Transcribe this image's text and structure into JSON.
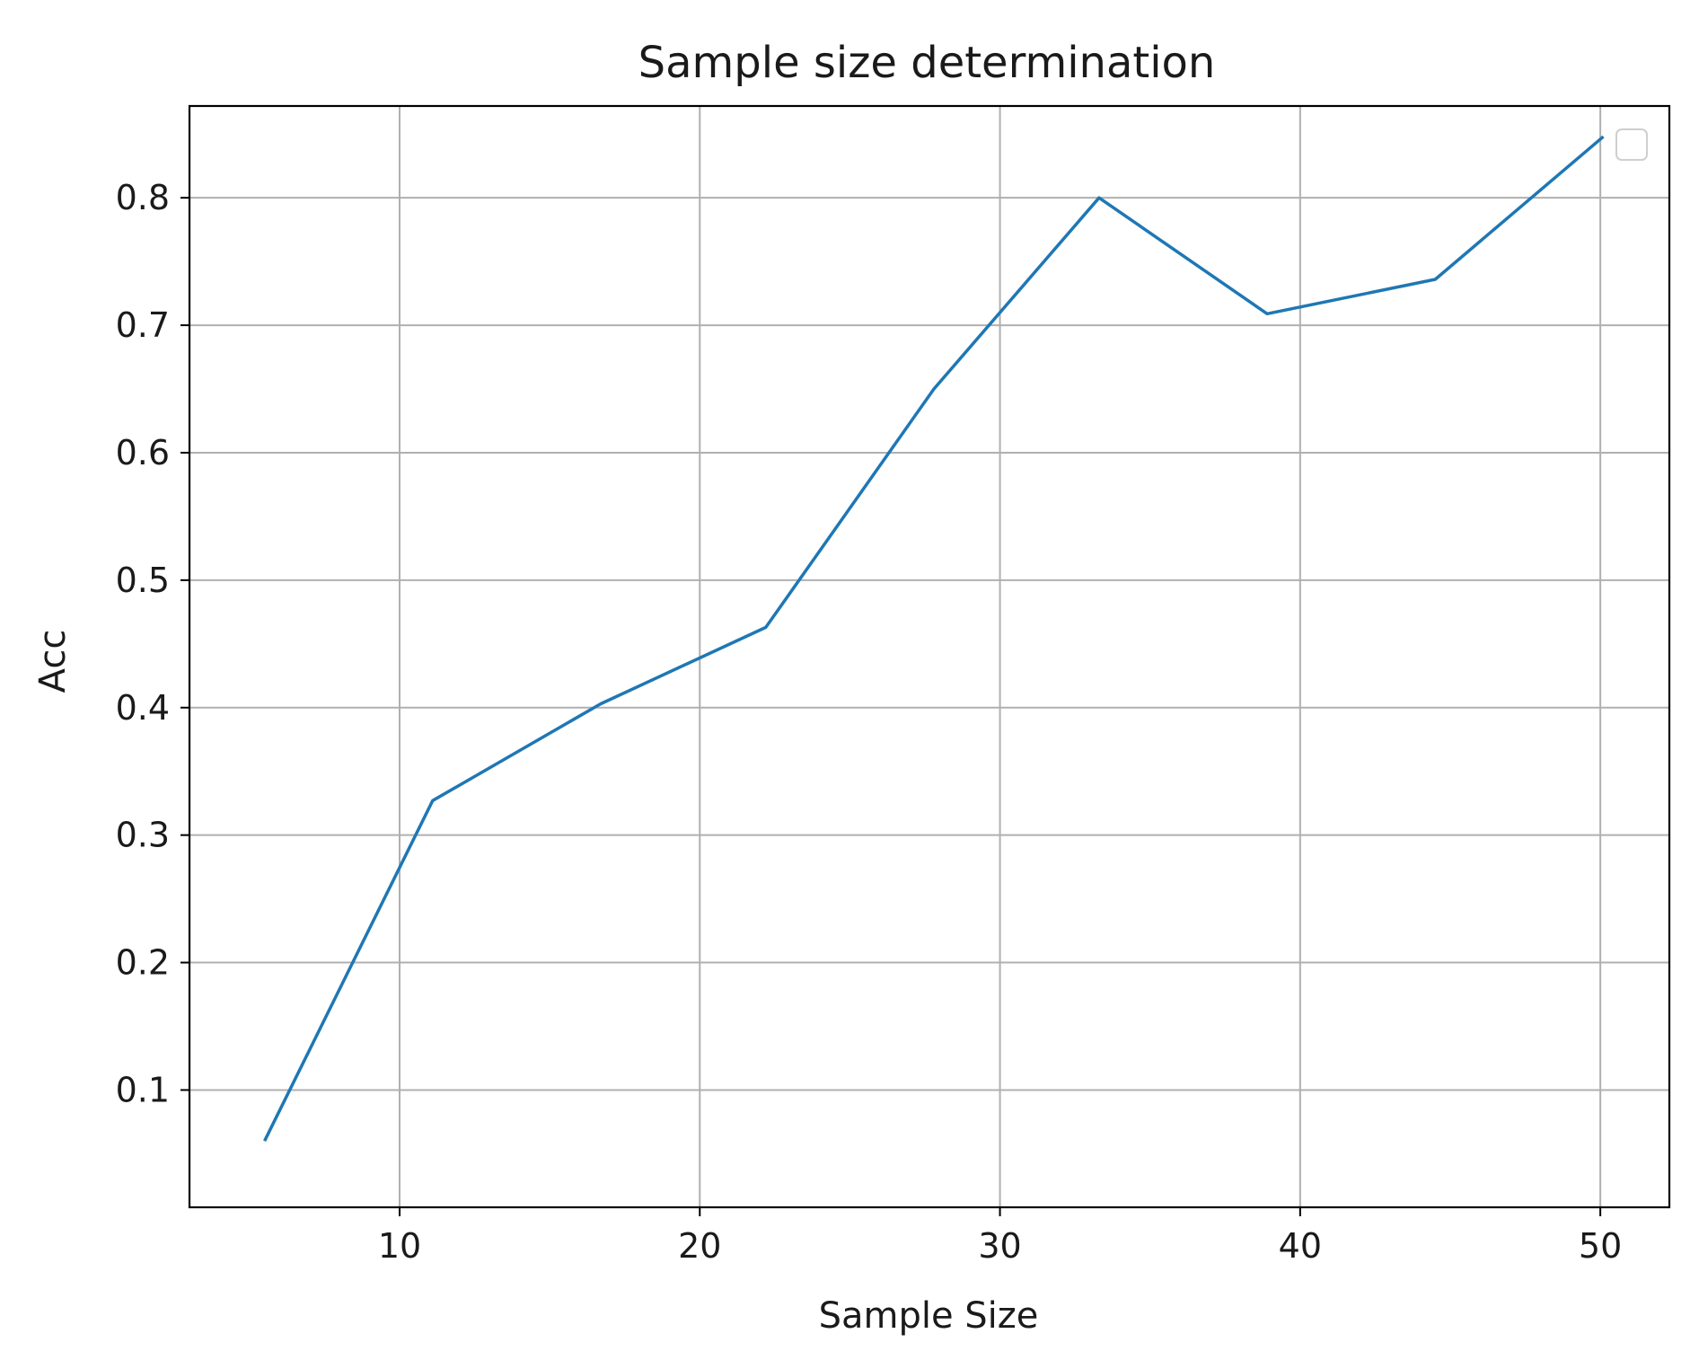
{
  "chart_data": {
    "type": "line",
    "title": "Sample size determination",
    "xlabel": "Sample Size",
    "ylabel": "Acc",
    "xlim": [
      3,
      52.3
    ],
    "ylim": [
      0.008,
      0.872
    ],
    "xticks": [
      10,
      20,
      30,
      40,
      50
    ],
    "yticks": [
      0.1,
      0.2,
      0.3,
      0.4,
      0.5,
      0.6,
      0.7,
      0.8
    ],
    "xtick_labels": [
      "10",
      "20",
      "30",
      "40",
      "50"
    ],
    "ytick_labels": [
      "0.1",
      "0.2",
      "0.3",
      "0.4",
      "0.5",
      "0.6",
      "0.7",
      "0.8"
    ],
    "grid": true,
    "legend": {
      "placement": "top-right",
      "entries": []
    },
    "series": [
      {
        "color": "#1f77b4",
        "x": [
          5.5,
          11.1,
          16.7,
          22.2,
          27.8,
          33.3,
          38.9,
          44.5,
          50.1
        ],
        "y": [
          0.06,
          0.327,
          0.403,
          0.463,
          0.65,
          0.8,
          0.709,
          0.736,
          0.848
        ]
      }
    ]
  }
}
